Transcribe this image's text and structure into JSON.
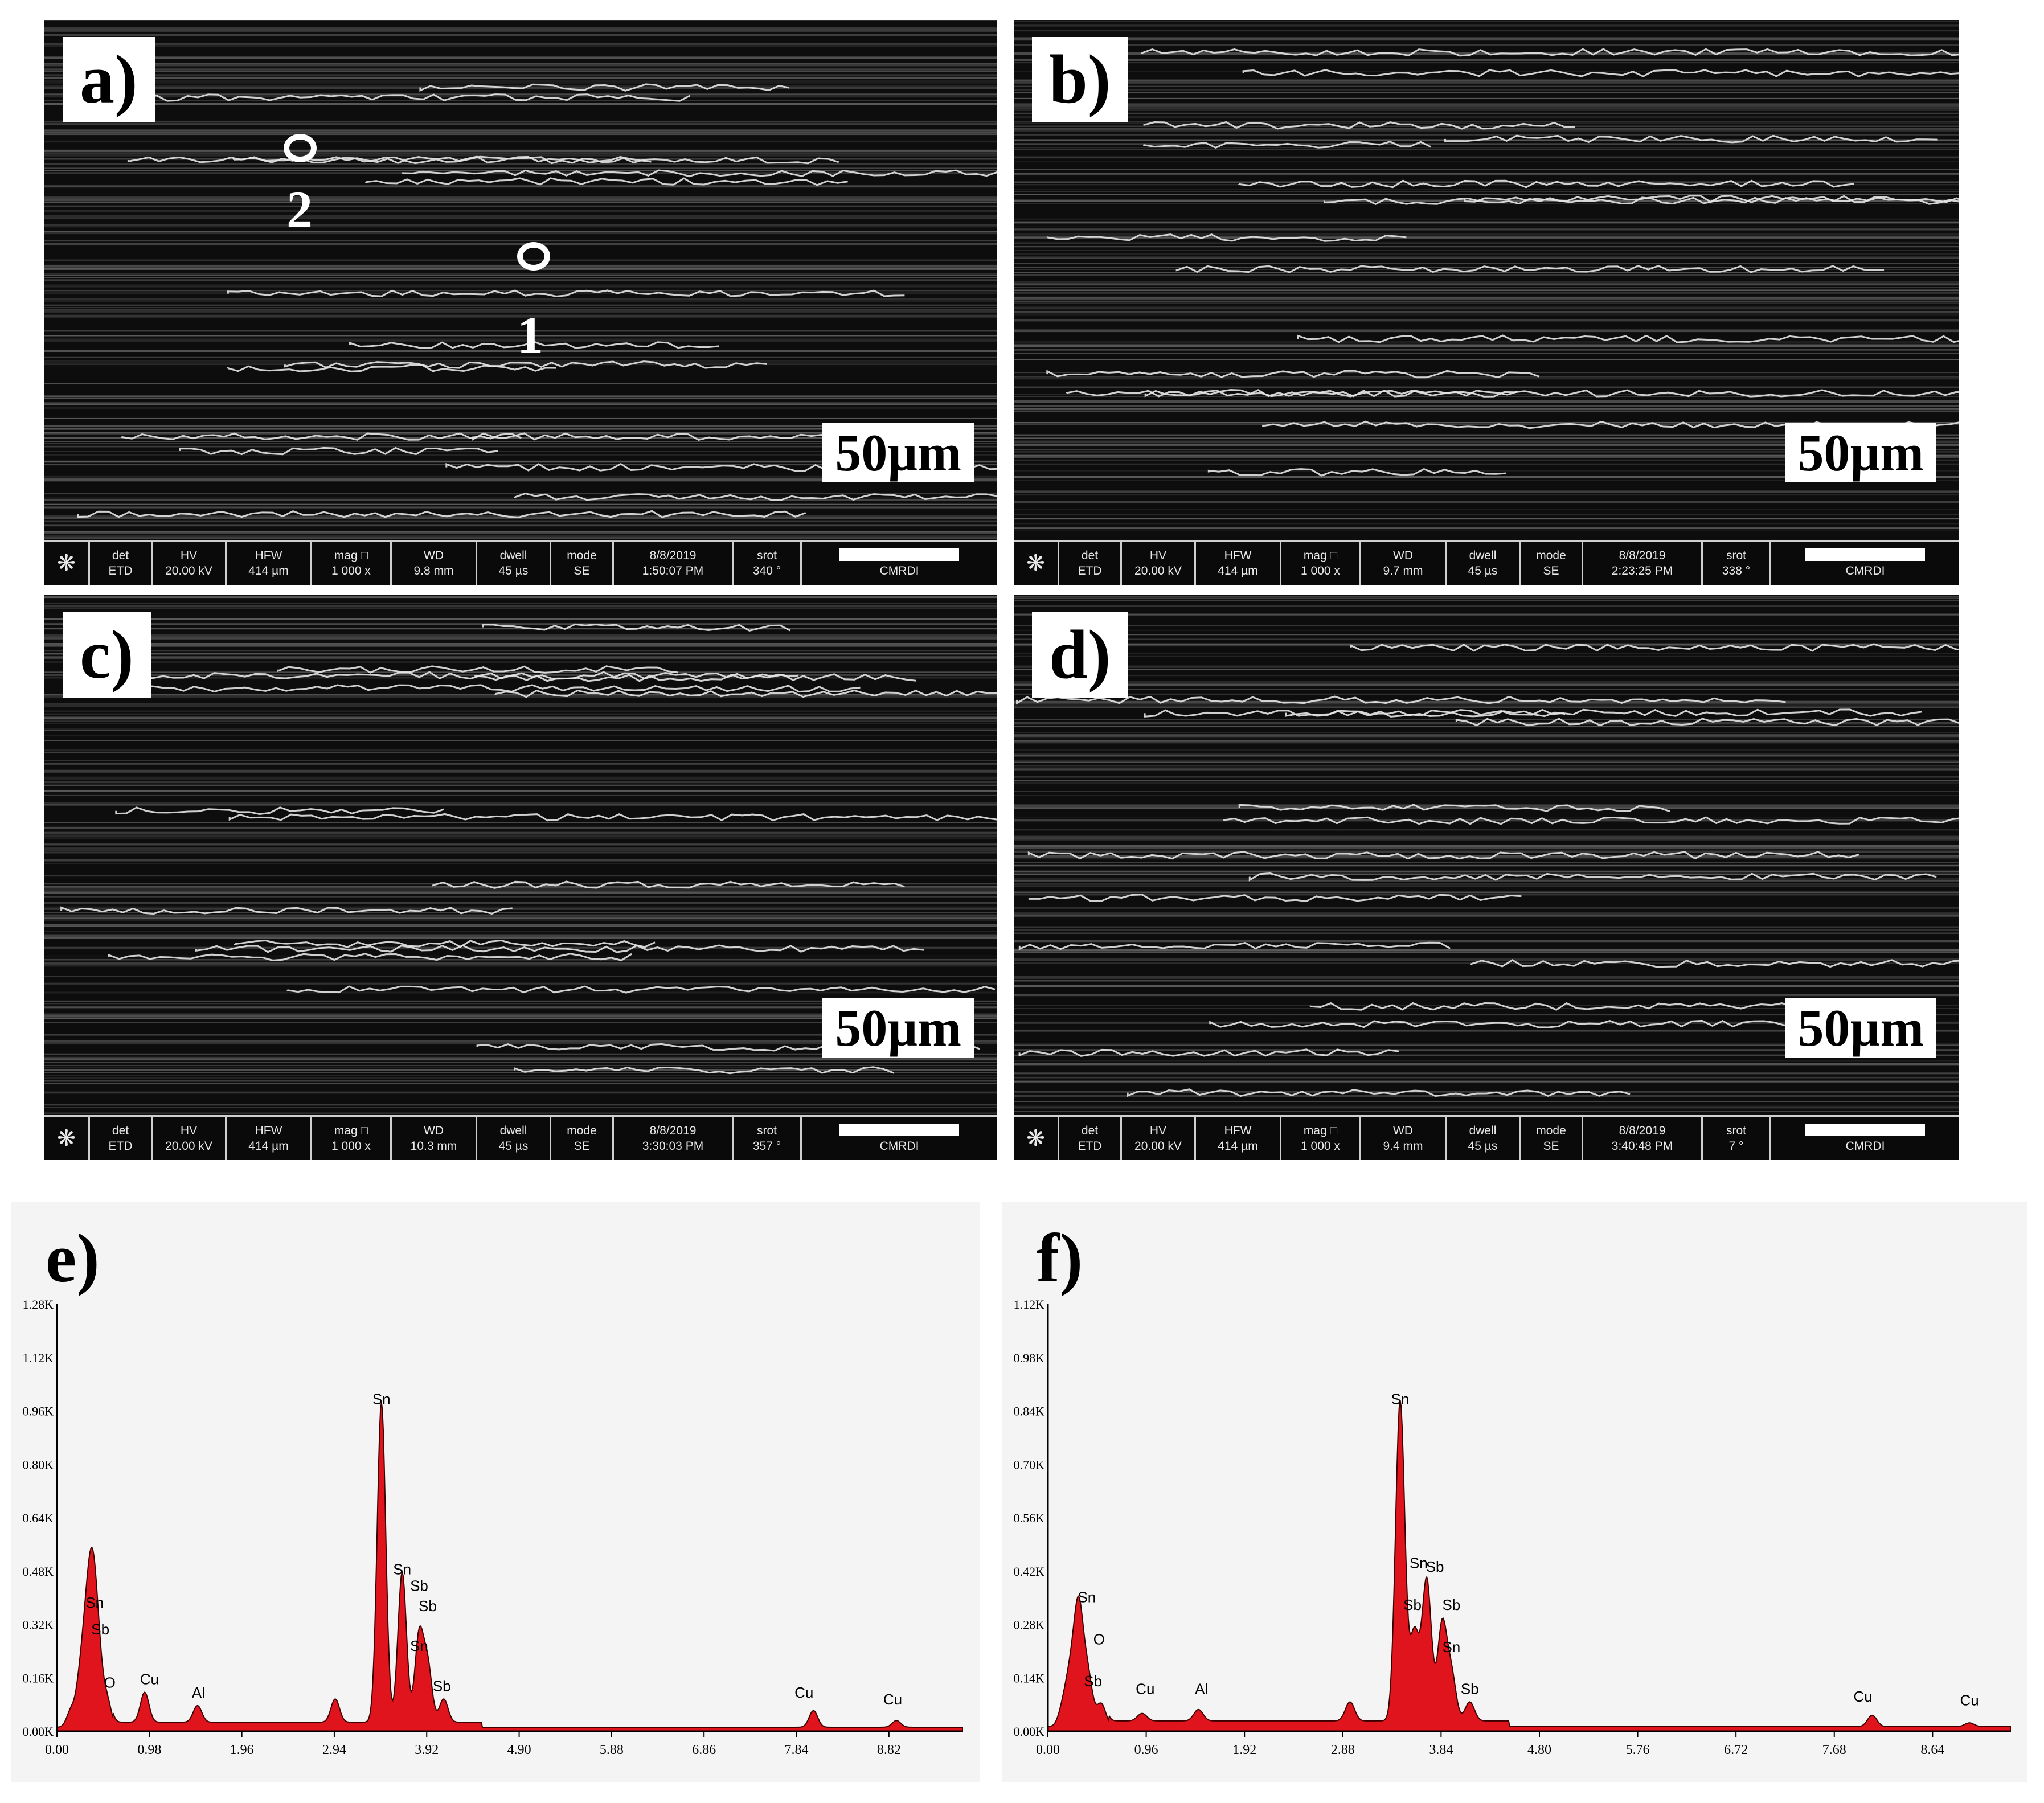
{
  "sem_panels": [
    {
      "label": "a)",
      "scale": "50µm",
      "info": [
        [
          "det",
          "ETD"
        ],
        [
          "HV",
          "20.00 kV"
        ],
        [
          "HFW",
          "414 µm"
        ],
        [
          "mag □",
          "1 000 x"
        ],
        [
          "WD",
          "9.8 mm"
        ],
        [
          "dwell",
          "45 µs"
        ],
        [
          "mode",
          "SE"
        ],
        [
          "8/8/2019",
          "1:50:07 PM"
        ],
        [
          "srot",
          "340 °"
        ]
      ],
      "lab": "CMRDI",
      "markers": [
        "2",
        "1"
      ]
    },
    {
      "label": "b)",
      "scale": "50µm",
      "info": [
        [
          "det",
          "ETD"
        ],
        [
          "HV",
          "20.00 kV"
        ],
        [
          "HFW",
          "414 µm"
        ],
        [
          "mag □",
          "1 000 x"
        ],
        [
          "WD",
          "9.7 mm"
        ],
        [
          "dwell",
          "45 µs"
        ],
        [
          "mode",
          "SE"
        ],
        [
          "8/8/2019",
          "2:23:25 PM"
        ],
        [
          "srot",
          "338 °"
        ]
      ],
      "lab": "CMRDI",
      "markers": []
    },
    {
      "label": "c)",
      "scale": "50µm",
      "info": [
        [
          "det",
          "ETD"
        ],
        [
          "HV",
          "20.00 kV"
        ],
        [
          "HFW",
          "414 µm"
        ],
        [
          "mag □",
          "1 000 x"
        ],
        [
          "WD",
          "10.3 mm"
        ],
        [
          "dwell",
          "45 µs"
        ],
        [
          "mode",
          "SE"
        ],
        [
          "8/8/2019",
          "3:30:03 PM"
        ],
        [
          "srot",
          "357 °"
        ]
      ],
      "lab": "CMRDI",
      "markers": []
    },
    {
      "label": "d)",
      "scale": "50µm",
      "info": [
        [
          "det",
          "ETD"
        ],
        [
          "HV",
          "20.00 kV"
        ],
        [
          "HFW",
          "414 µm"
        ],
        [
          "mag □",
          "1 000 x"
        ],
        [
          "WD",
          "9.4 mm"
        ],
        [
          "dwell",
          "45 µs"
        ],
        [
          "mode",
          "SE"
        ],
        [
          "8/8/2019",
          "3:40:48 PM"
        ],
        [
          "srot",
          "7 °"
        ]
      ],
      "lab": "CMRDI",
      "markers": []
    }
  ],
  "chart_data": [
    {
      "type": "area",
      "label": "e)",
      "xticks": [
        "0.00",
        "0.98",
        "1.96",
        "2.94",
        "3.92",
        "4.90",
        "5.88",
        "6.86",
        "7.84",
        "8.82"
      ],
      "yticks": [
        "0.00K",
        "0.16K",
        "0.32K",
        "0.48K",
        "0.64K",
        "0.80K",
        "0.96K",
        "1.12K",
        "1.28K"
      ],
      "xlim": [
        0,
        9.6
      ],
      "ylim": [
        0,
        1.28
      ],
      "fill_color": "#e0141c",
      "peaks": [
        {
          "x": 0.15,
          "y": 0.05
        },
        {
          "x": 0.25,
          "y": 0.14
        },
        {
          "x": 0.32,
          "y": 0.26
        },
        {
          "x": 0.38,
          "y": 0.35
        },
        {
          "x": 0.44,
          "y": 0.18
        },
        {
          "x": 0.53,
          "y": 0.08
        },
        {
          "x": 0.93,
          "y": 0.09
        },
        {
          "x": 1.49,
          "y": 0.05
        },
        {
          "x": 2.95,
          "y": 0.07
        },
        {
          "x": 3.44,
          "y": 0.96
        },
        {
          "x": 3.66,
          "y": 0.45
        },
        {
          "x": 3.84,
          "y": 0.26
        },
        {
          "x": 3.93,
          "y": 0.17
        },
        {
          "x": 4.1,
          "y": 0.07
        },
        {
          "x": 8.02,
          "y": 0.05
        },
        {
          "x": 8.9,
          "y": 0.02
        }
      ],
      "annotations": [
        {
          "text": "Sn",
          "x": 3.44,
          "y": 0.96
        },
        {
          "text": "Sn",
          "x": 3.66,
          "y": 0.45
        },
        {
          "text": "Sb",
          "x": 3.84,
          "y": 0.4
        },
        {
          "text": "Sb",
          "x": 3.93,
          "y": 0.34
        },
        {
          "text": "Sn",
          "x": 3.84,
          "y": 0.22
        },
        {
          "text": "Sb",
          "x": 4.08,
          "y": 0.1
        },
        {
          "text": "Sn",
          "x": 0.4,
          "y": 0.35
        },
        {
          "text": "Sb",
          "x": 0.46,
          "y": 0.27
        },
        {
          "text": "O",
          "x": 0.56,
          "y": 0.11
        },
        {
          "text": "Cu",
          "x": 0.98,
          "y": 0.12
        },
        {
          "text": "Al",
          "x": 1.5,
          "y": 0.08
        },
        {
          "text": "Cu",
          "x": 7.92,
          "y": 0.08
        },
        {
          "text": "Cu",
          "x": 8.86,
          "y": 0.06
        }
      ]
    },
    {
      "type": "area",
      "label": "f)",
      "xticks": [
        "0.00",
        "0.96",
        "1.92",
        "2.88",
        "3.84",
        "4.80",
        "5.76",
        "6.72",
        "7.68",
        "8.64"
      ],
      "yticks": [
        "0.00K",
        "0.14K",
        "0.28K",
        "0.42K",
        "0.56K",
        "0.70K",
        "0.84K",
        "0.98K",
        "1.12K"
      ],
      "xlim": [
        0,
        9.4
      ],
      "ylim": [
        0,
        1.12
      ],
      "fill_color": "#e0141c",
      "peaks": [
        {
          "x": 0.15,
          "y": 0.05
        },
        {
          "x": 0.22,
          "y": 0.12
        },
        {
          "x": 0.3,
          "y": 0.3
        },
        {
          "x": 0.39,
          "y": 0.13
        },
        {
          "x": 0.52,
          "y": 0.06
        },
        {
          "x": 0.92,
          "y": 0.02
        },
        {
          "x": 1.47,
          "y": 0.03
        },
        {
          "x": 2.95,
          "y": 0.05
        },
        {
          "x": 3.44,
          "y": 0.84
        },
        {
          "x": 3.58,
          "y": 0.23
        },
        {
          "x": 3.7,
          "y": 0.37
        },
        {
          "x": 3.85,
          "y": 0.25
        },
        {
          "x": 3.94,
          "y": 0.12
        },
        {
          "x": 4.12,
          "y": 0.05
        },
        {
          "x": 8.05,
          "y": 0.03
        },
        {
          "x": 9.0,
          "y": 0.01
        }
      ],
      "annotations": [
        {
          "text": "Sn",
          "x": 3.44,
          "y": 0.84
        },
        {
          "text": "Sn",
          "x": 3.62,
          "y": 0.41
        },
        {
          "text": "Sb",
          "x": 3.78,
          "y": 0.4
        },
        {
          "text": "Sb",
          "x": 3.56,
          "y": 0.3
        },
        {
          "text": "Sb",
          "x": 3.94,
          "y": 0.3
        },
        {
          "text": "Sn",
          "x": 3.94,
          "y": 0.19
        },
        {
          "text": "Sb",
          "x": 4.12,
          "y": 0.08
        },
        {
          "text": "Sn",
          "x": 0.38,
          "y": 0.32
        },
        {
          "text": "O",
          "x": 0.5,
          "y": 0.21
        },
        {
          "text": "Sb",
          "x": 0.44,
          "y": 0.1
        },
        {
          "text": "Cu",
          "x": 0.95,
          "y": 0.08
        },
        {
          "text": "Al",
          "x": 1.5,
          "y": 0.08
        },
        {
          "text": "Cu",
          "x": 7.96,
          "y": 0.06
        },
        {
          "text": "Cu",
          "x": 9.0,
          "y": 0.05
        }
      ]
    }
  ]
}
